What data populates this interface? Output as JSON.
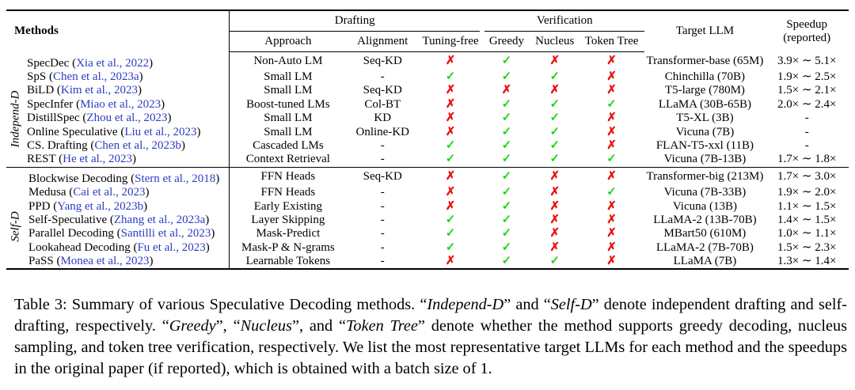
{
  "header": {
    "methods": "Methods",
    "drafting": "Drafting",
    "verification": "Verification",
    "target": "Target LLM",
    "speedup": "Speedup",
    "speedup_sub": "(reported)",
    "approach": "Approach",
    "alignment": "Alignment",
    "tuning_free": "Tuning-free",
    "greedy": "Greedy",
    "nucleus": "Nucleus",
    "token_tree": "Token Tree"
  },
  "groups": [
    {
      "label": "Independ-D",
      "rows": [
        {
          "name": "SpecDec",
          "cite": "Xia et al., 2022",
          "approach": "Non-Auto LM",
          "alignment": "Seq-KD",
          "tf": "✗",
          "g": "✓",
          "n": "✗",
          "t": "✗",
          "target": "Transformer-base (65M)",
          "speedup": "3.9× ∼ 5.1×"
        },
        {
          "name": "SpS",
          "cite": "Chen et al., 2023a",
          "approach": "Small LM",
          "alignment": "-",
          "tf": "✓",
          "g": "✓",
          "n": "✓",
          "t": "✗",
          "target": "Chinchilla (70B)",
          "speedup": "1.9× ∼ 2.5×"
        },
        {
          "name": "BiLD",
          "cite": "Kim et al., 2023",
          "approach": "Small LM",
          "alignment": "Seq-KD",
          "tf": "✗",
          "g": "✗",
          "n": "✗",
          "t": "✗",
          "target": "T5-large (780M)",
          "speedup": "1.5× ∼ 2.1×"
        },
        {
          "name": "SpecInfer",
          "cite": "Miao et al., 2023",
          "approach": "Boost-tuned LMs",
          "alignment": "Col-BT",
          "tf": "✗",
          "g": "✓",
          "n": "✓",
          "t": "✓",
          "target": "LLaMA (30B-65B)",
          "speedup": "2.0× ∼ 2.4×"
        },
        {
          "name": "DistillSpec",
          "cite": "Zhou et al., 2023",
          "approach": "Small LM",
          "alignment": "KD",
          "tf": "✗",
          "g": "✓",
          "n": "✓",
          "t": "✗",
          "target": "T5-XL (3B)",
          "speedup": "-"
        },
        {
          "name": "Online Speculative",
          "cite": "Liu et al., 2023",
          "approach": "Small LM",
          "alignment": "Online-KD",
          "tf": "✗",
          "g": "✓",
          "n": "✓",
          "t": "✗",
          "target": "Vicuna (7B)",
          "speedup": "-"
        },
        {
          "name": "CS. Drafting",
          "cite": "Chen et al., 2023b",
          "approach": "Cascaded LMs",
          "alignment": "-",
          "tf": "✓",
          "g": "✓",
          "n": "✓",
          "t": "✗",
          "target": "FLAN-T5-xxl (11B)",
          "speedup": "-"
        },
        {
          "name": "REST",
          "cite": "He et al., 2023",
          "approach": "Context Retrieval",
          "alignment": "-",
          "tf": "✓",
          "g": "✓",
          "n": "✓",
          "t": "✓",
          "target": "Vicuna (7B-13B)",
          "speedup": "1.7× ∼ 1.8×"
        }
      ]
    },
    {
      "label": "Self-D",
      "rows": [
        {
          "name": "Blockwise Decoding",
          "cite": "Stern et al., 2018",
          "approach": "FFN Heads",
          "alignment": "Seq-KD",
          "tf": "✗",
          "g": "✓",
          "n": "✗",
          "t": "✗",
          "target": "Transformer-big (213M)",
          "speedup": "1.7× ∼ 3.0×"
        },
        {
          "name": "Medusa",
          "cite": "Cai et al., 2023",
          "approach": "FFN Heads",
          "alignment": "-",
          "tf": "✗",
          "g": "✓",
          "n": "✗",
          "t": "✓",
          "target": "Vicuna (7B-33B)",
          "speedup": "1.9× ∼ 2.0×"
        },
        {
          "name": "PPD",
          "cite": "Yang et al., 2023b",
          "approach": "Early Existing",
          "alignment": "-",
          "tf": "✗",
          "g": "✓",
          "n": "✗",
          "t": "✗",
          "target": "Vicuna (13B)",
          "speedup": "1.1× ∼ 1.5×"
        },
        {
          "name": "Self-Speculative",
          "cite": "Zhang et al., 2023a",
          "approach": "Layer Skipping",
          "alignment": "-",
          "tf": "✓",
          "g": "✓",
          "n": "✗",
          "t": "✗",
          "target": "LLaMA-2 (13B-70B)",
          "speedup": "1.4× ∼ 1.5×"
        },
        {
          "name": "Parallel Decoding",
          "cite": "Santilli et al., 2023",
          "approach": "Mask-Predict",
          "alignment": "-",
          "tf": "✓",
          "g": "✓",
          "n": "✗",
          "t": "✗",
          "target": "MBart50 (610M)",
          "speedup": "1.0× ∼ 1.1×"
        },
        {
          "name": "Lookahead Decoding",
          "cite": "Fu et al., 2023",
          "approach": "Mask-P & N-grams",
          "alignment": "-",
          "tf": "✓",
          "g": "✓",
          "n": "✗",
          "t": "✗",
          "target": "LLaMA-2 (7B-70B)",
          "speedup": "1.5× ∼ 2.3×"
        },
        {
          "name": "PaSS",
          "cite": "Monea et al., 2023",
          "approach": "Learnable Tokens",
          "alignment": "-",
          "tf": "✗",
          "g": "✓",
          "n": "✓",
          "t": "✗",
          "target": "LLaMA (7B)",
          "speedup": "1.3× ∼ 1.4×"
        }
      ]
    }
  ],
  "caption": {
    "p1": "Table 3: Summary of various Speculative Decoding methods. “",
    "i1": "Independ-D",
    "p2": "” and “",
    "i2": "Self-D",
    "p3": "” denote independent drafting and self-drafting, respectively. “",
    "i3": "Greedy",
    "p4": "”, “",
    "i4": "Nucleus",
    "p5": "”, and “",
    "i5": "Token Tree",
    "p6": "” denote whether the method supports greedy decoding, nucleus sampling, and token tree verification, respectively. We list the most representative target LLMs for each method and the speedups in the original paper (if reported), which is obtained with a batch size of 1."
  }
}
